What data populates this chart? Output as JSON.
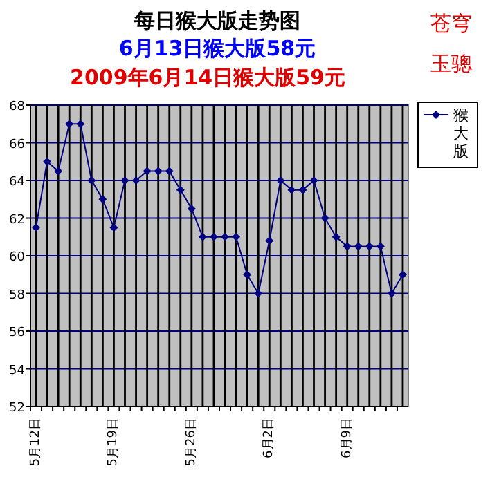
{
  "chart_data": {
    "type": "line",
    "title": "每日猴大版走势图",
    "subtitle": "6月13日猴大版58元",
    "annotations": [
      "2009年6月14日猴大版59元",
      "苍穹玉骢"
    ],
    "categories": [
      "5月12日",
      null,
      null,
      null,
      null,
      null,
      null,
      "5月19日",
      null,
      null,
      null,
      null,
      null,
      null,
      "5月26日",
      null,
      null,
      null,
      null,
      null,
      null,
      "6月2日",
      null,
      null,
      null,
      null,
      null,
      null,
      "6月9日",
      null,
      null,
      null,
      null,
      null
    ],
    "series": [
      {
        "name": "猴大版",
        "color": "#000080",
        "values": [
          61.5,
          65,
          64.5,
          67,
          67,
          64,
          63,
          61.5,
          64,
          64,
          64.5,
          64.5,
          64.5,
          63.5,
          62.5,
          61,
          61,
          61,
          61,
          59,
          58,
          60.8,
          64,
          63.5,
          63.5,
          64,
          62,
          61,
          60.5,
          60.5,
          60.5,
          60.5,
          58,
          59
        ]
      }
    ],
    "ylim": [
      52,
      68
    ],
    "yticks": [
      52,
      54,
      56,
      58,
      60,
      62,
      64,
      66,
      68
    ],
    "grid": true,
    "legend": "right",
    "marker": "diamond",
    "line_style": "solid"
  }
}
